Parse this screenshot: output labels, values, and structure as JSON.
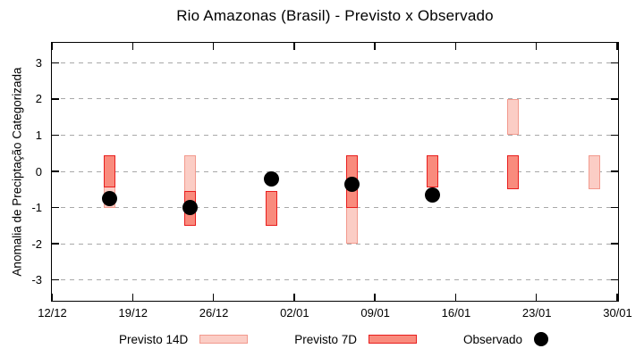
{
  "chart_data": {
    "type": "bar",
    "subtype": "range-bars-with-points",
    "title": "Rio Amazonas (Brasil) - Previsto x Observado",
    "xlabel": "",
    "ylabel": "Anomalia de Preciptação Categorizada",
    "ylim": [
      -3.55,
      3.55
    ],
    "yticks": [
      3,
      2,
      1,
      0,
      -1,
      -2,
      -3
    ],
    "grid": "horizontal-dashed",
    "grid_color": "#a8a8a8",
    "legend_position": "bottom-center",
    "x_total_days": 49,
    "xticks": [
      {
        "label": "12/12",
        "day": 0
      },
      {
        "label": "19/12",
        "day": 7
      },
      {
        "label": "26/12",
        "day": 14
      },
      {
        "label": "02/01",
        "day": 21
      },
      {
        "label": "09/01",
        "day": 28
      },
      {
        "label": "16/01",
        "day": 35
      },
      {
        "label": "23/01",
        "day": 42
      },
      {
        "label": "30/01",
        "day": 49
      }
    ],
    "series": [
      {
        "name": "Previsto 14D",
        "style": "range-bar",
        "fill": "#fbcdc5",
        "border": "#f29a8e"
      },
      {
        "name": "Previsto 7D",
        "style": "range-bar",
        "fill": "#f98b7d",
        "border": "#e81e1e"
      },
      {
        "name": "Observado",
        "style": "point",
        "color": "#000000"
      }
    ],
    "clusters": [
      {
        "date": "17/12",
        "day": 5,
        "previsto14": [
          0.45,
          -1.0
        ],
        "previsto7": [
          0.45,
          -0.45
        ],
        "observado": -0.75
      },
      {
        "date": "24/12",
        "day": 12,
        "previsto14": [
          0.45,
          -1.5
        ],
        "previsto7": [
          -0.55,
          -1.5
        ],
        "observado": -1.0
      },
      {
        "date": "31/12",
        "day": 19,
        "previsto14": null,
        "previsto7": [
          -0.55,
          -1.5
        ],
        "observado": -0.2
      },
      {
        "date": "07/01",
        "day": 26,
        "previsto14": [
          0.45,
          -2.0
        ],
        "previsto7": [
          0.45,
          -1.0
        ],
        "observado": -0.35
      },
      {
        "date": "14/01",
        "day": 33,
        "previsto14": null,
        "previsto7": [
          0.45,
          -0.45
        ],
        "observado": -0.65
      },
      {
        "date": "21/01",
        "day": 40,
        "previsto14": [
          2.0,
          1.0
        ],
        "previsto7": [
          0.45,
          -0.5
        ],
        "observado": null
      },
      {
        "date": "28/01",
        "day": 47,
        "previsto14": [
          0.45,
          -0.5
        ],
        "previsto7": null,
        "observado": null
      }
    ]
  }
}
